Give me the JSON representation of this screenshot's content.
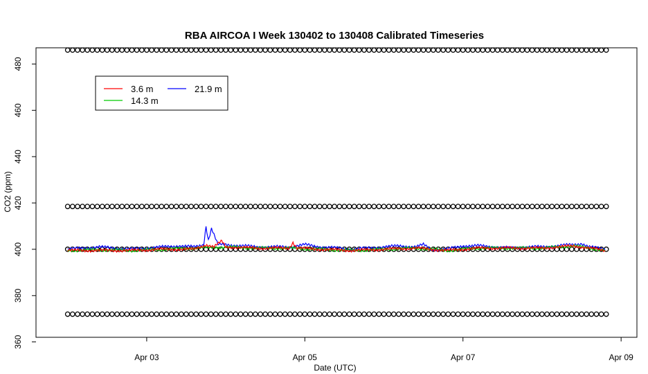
{
  "chart_data": {
    "type": "line",
    "title": "RBA AIRCOA I  Week 130402 to 130408  Calibrated Timeseries",
    "xlabel": "Date (UTC)",
    "ylabel": "CO2 (ppm)",
    "x_unit": "day of April 2013",
    "xlim": [
      1.6,
      9.2
    ],
    "ylim": [
      362,
      487
    ],
    "x_ticks": [
      {
        "value": 3,
        "label": "Apr 03"
      },
      {
        "value": 5,
        "label": "Apr 05"
      },
      {
        "value": 7,
        "label": "Apr 07"
      },
      {
        "value": 9,
        "label": "Apr 09"
      }
    ],
    "y_ticks": [
      360,
      380,
      400,
      420,
      440,
      460,
      480
    ],
    "grid": false,
    "legend": {
      "placement": "top-left",
      "entries": [
        {
          "name": "3.6 m",
          "color": "#ff0000"
        },
        {
          "name": "21.9 m",
          "color": "#0000ff"
        },
        {
          "name": "14.3 m",
          "color": "#00cc00"
        }
      ]
    },
    "series": [
      {
        "name": "21.9 m",
        "color": "#0000ff",
        "x": [
          2.0,
          2.2,
          2.4,
          2.6,
          2.8,
          3.0,
          3.2,
          3.4,
          3.6,
          3.72,
          3.75,
          3.78,
          3.82,
          3.9,
          4.0,
          4.2,
          4.4,
          4.6,
          4.8,
          5.0,
          5.2,
          5.4,
          5.6,
          5.8,
          6.0,
          6.2,
          6.4,
          6.5,
          6.6,
          6.8,
          7.0,
          7.2,
          7.4,
          7.6,
          7.8,
          8.0,
          8.2,
          8.4,
          8.5,
          8.6,
          8.8
        ],
        "values": [
          400,
          400.5,
          401,
          400.5,
          400,
          400.5,
          401,
          401.5,
          401,
          402,
          410,
          404,
          409,
          402,
          402,
          401.5,
          401,
          401,
          401,
          402,
          401,
          400.5,
          400,
          400.5,
          401,
          401.5,
          401,
          402,
          400,
          400,
          401.5,
          401.5,
          401,
          400.5,
          401,
          401,
          401.5,
          402,
          402.5,
          401,
          400
        ]
      },
      {
        "name": "14.3 m",
        "color": "#00cc00",
        "x": [
          2.0,
          2.4,
          2.8,
          3.2,
          3.6,
          4.0,
          4.4,
          4.8,
          5.2,
          5.6,
          6.0,
          6.4,
          6.8,
          7.2,
          7.6,
          8.0,
          8.4,
          8.8
        ],
        "values": [
          399.5,
          399.8,
          399.5,
          400,
          400.5,
          401,
          400.5,
          400.5,
          400,
          399.5,
          400,
          400.5,
          399.5,
          400.5,
          400.5,
          400.5,
          401.5,
          399.5
        ]
      },
      {
        "name": "3.6 m",
        "color": "#ff0000",
        "x": [
          2.0,
          2.4,
          2.8,
          3.2,
          3.6,
          3.75,
          3.85,
          3.95,
          4.0,
          4.4,
          4.8,
          4.85,
          4.9,
          5.2,
          5.6,
          6.0,
          6.4,
          6.8,
          7.2,
          7.6,
          8.0,
          8.4,
          8.8
        ],
        "values": [
          399.5,
          399.5,
          399.5,
          400,
          400,
          402,
          401,
          403.5,
          401,
          400.5,
          400.5,
          403,
          400.5,
          400,
          399.5,
          400,
          400.5,
          399.5,
          400.5,
          400.5,
          400.5,
          401.5,
          399.5
        ]
      }
    ],
    "calibration_markers": {
      "levels": [
        486,
        418.5,
        400,
        372
      ],
      "x_start": 2.0,
      "x_end": 8.85,
      "spacing_days": 0.0625
    }
  }
}
